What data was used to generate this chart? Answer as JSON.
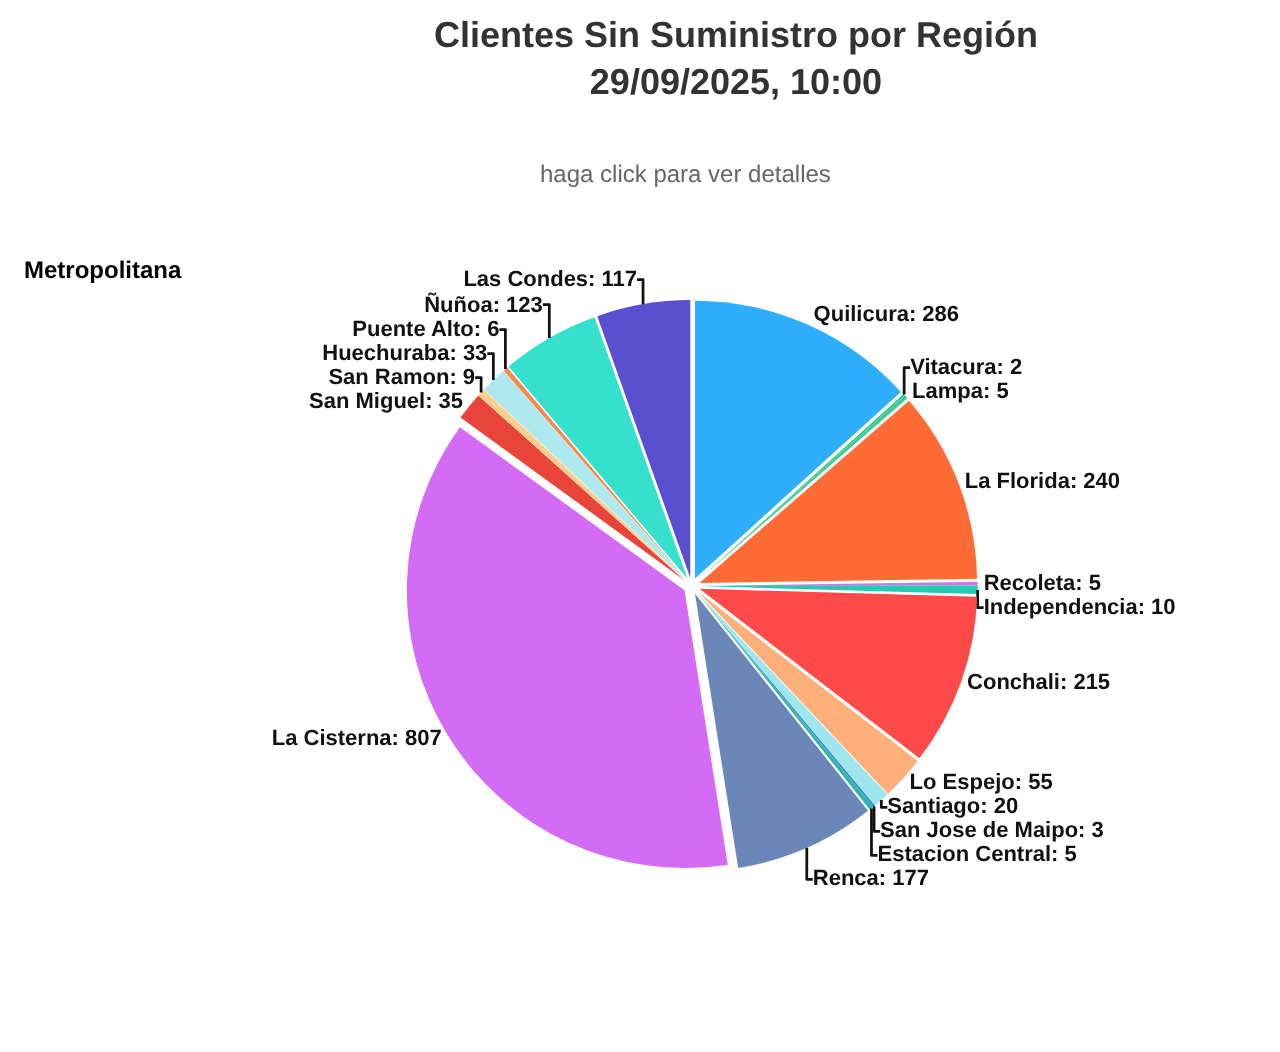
{
  "chart_data": {
    "type": "pie",
    "title": "Clientes Sin Suministro por Región\n29/09/2025, 10:00",
    "subtitle": "haga click para ver detalles",
    "annotations": [
      "Metropolitana"
    ],
    "categories": [
      "Quilicura: 286",
      "Vitacura: 2",
      "Lampa: 5",
      "La Florida: 240",
      "Recoleta: 5",
      "Independencia: 10",
      "Conchali: 215",
      "Lo Espejo: 55",
      "Santiago: 20",
      "San Jose de Maipo: 3",
      "Estacion Central: 5",
      "Renca: 177",
      "La Cisterna: 807",
      "San Miguel: 35",
      "San Ramon: 9",
      "Huechuraba: 33",
      "Puente Alto: 6",
      "Ñuñoa: 123",
      "Las Condes: 117"
    ],
    "values": [
      286,
      2,
      5,
      240,
      5,
      10,
      215,
      55,
      20,
      3,
      5,
      177,
      807,
      35,
      9,
      33,
      6,
      123,
      117
    ],
    "colors": [
      "#2eaefd",
      "#2bb6a8",
      "#3ccf8e",
      "#ff6b35",
      "#c77ddb",
      "#2bc7b0",
      "#ff4a4a",
      "#ffb07a",
      "#a0e6ee",
      "#3a8fd0",
      "#2bb6a8",
      "#6b87b8",
      "#d36bf5",
      "#e8443a",
      "#ffcf8a",
      "#aee9f0",
      "#f48b4e",
      "#35e0cc",
      "#5a4fcf"
    ],
    "legend": false
  }
}
